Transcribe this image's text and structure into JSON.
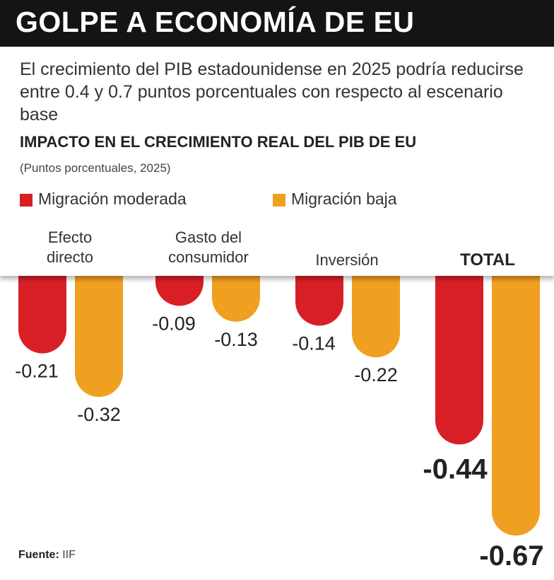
{
  "header": {
    "title": "GOLPE A ECONOMÍA DE EU"
  },
  "subtitle": "El crecimiento del PIB estadounidense en 2025 podría reducirse entre 0.4 y 0.7 puntos porcentuales con respecto al escenario base",
  "source": {
    "label": "Fuente:",
    "value": "IIF"
  },
  "colors": {
    "moderada": "#d81f26",
    "baja": "#f0a020",
    "header_bg": "#141414"
  },
  "chart_data": {
    "type": "bar",
    "title": "IMPACTO EN EL CRECIMIENTO REAL DEL PIB DE EU",
    "unit": "(Puntos porcentuales, 2025)",
    "legend_position": "top-left",
    "grid": false,
    "ylim": [
      -0.67,
      0
    ],
    "categories": [
      "Efecto directo",
      "Gasto del consumidor",
      "Inversión",
      "TOTAL"
    ],
    "series": [
      {
        "name": "Migración moderada",
        "color": "#d81f26",
        "values": [
          -0.21,
          -0.09,
          -0.14,
          -0.44
        ],
        "labels": [
          "-0.21",
          "-0.09",
          "-0.14",
          "-0.44"
        ]
      },
      {
        "name": "Migración baja",
        "color": "#f0a020",
        "values": [
          -0.32,
          -0.13,
          -0.22,
          -0.67
        ],
        "labels": [
          "-0.32",
          "-0.13",
          "-0.22",
          "-0.67"
        ]
      }
    ]
  }
}
